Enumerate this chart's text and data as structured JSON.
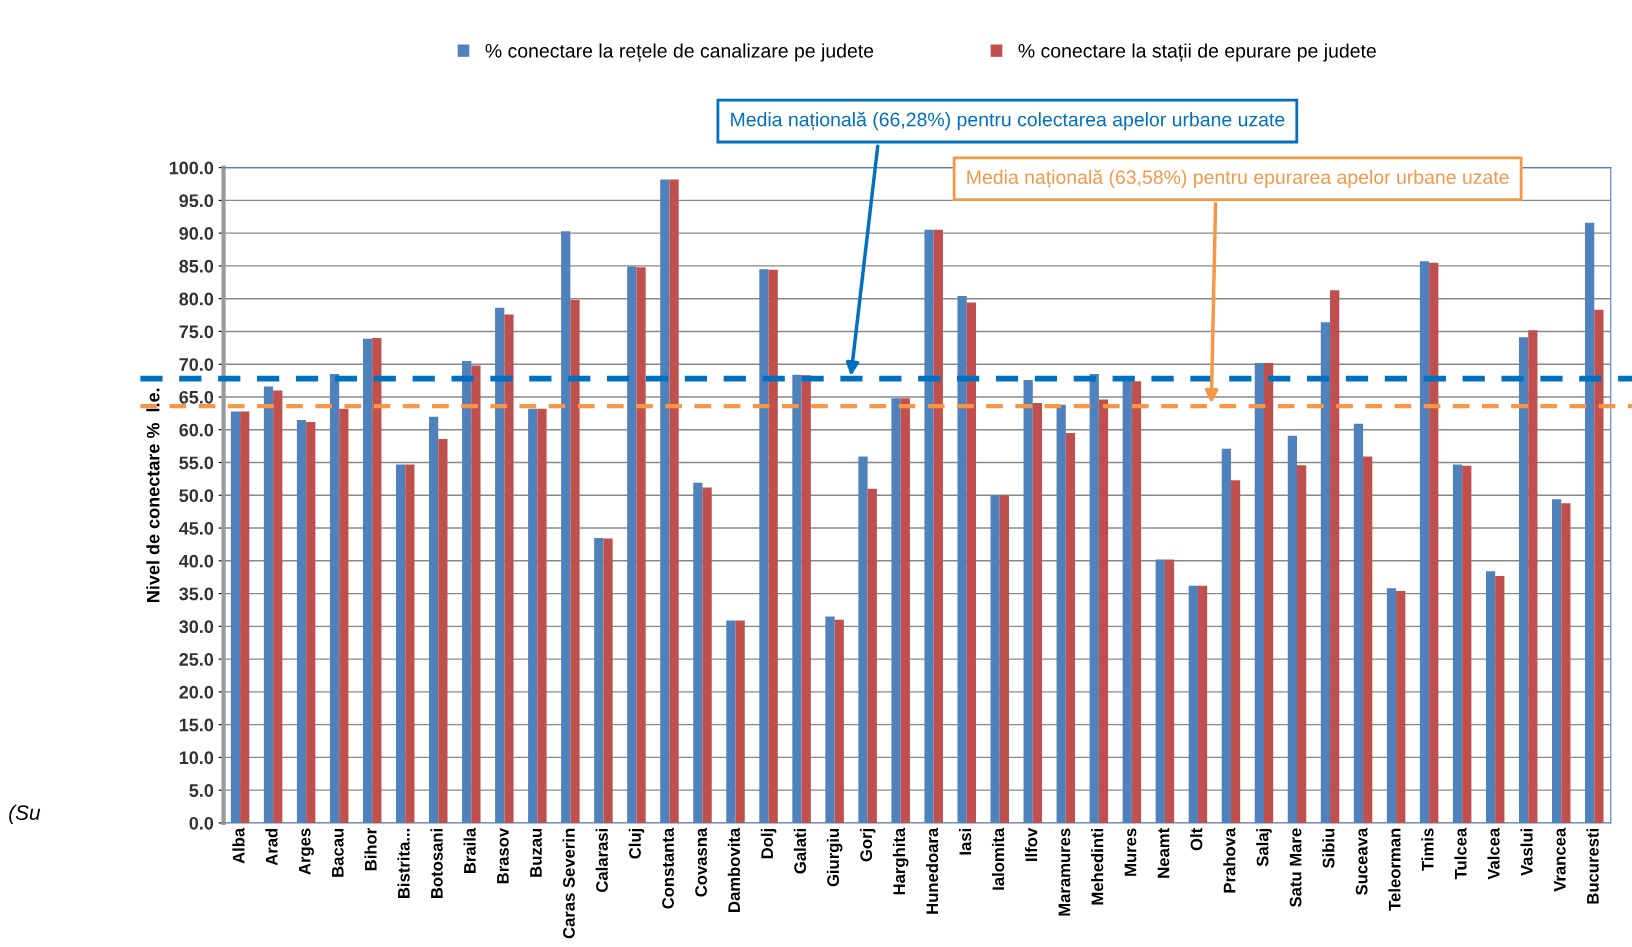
{
  "chart_data": {
    "type": "bar",
    "ylabel": "Nivel de conectare %  l.e.",
    "categories": [
      "Alba",
      "Arad",
      "Arges",
      "Bacau",
      "Bihor",
      "Bistrita...",
      "Botosani",
      "Braila",
      "Brasov",
      "Buzau",
      "Caras Severin",
      "Calarasi",
      "Cluj",
      "Constanta",
      "Covasna",
      "Dambovita",
      "Dolj",
      "Galati",
      "Giurgiu",
      "Gorj",
      "Harghita",
      "Hunedoara",
      "Iasi",
      "Ialomita",
      "Ilfov",
      "Maramures",
      "Mehedinti",
      "Mures",
      "Neamt",
      "Olt",
      "Prahova",
      "Salaj",
      "Satu Mare",
      "Sibiu",
      "Suceava",
      "Teleorman",
      "Timis",
      "Tulcea",
      "Valcea",
      "Vaslui",
      "Vrancea",
      "Bucuresti"
    ],
    "series": [
      {
        "name": "% conectare la rețele de canalizare pe judete",
        "color": "#4f81bd",
        "values": [
          62.8,
          66.6,
          61.5,
          68.5,
          73.9,
          54.7,
          62.0,
          70.5,
          78.6,
          63.2,
          90.3,
          43.5,
          84.9,
          98.2,
          51.9,
          30.9,
          84.5,
          68.4,
          31.5,
          55.9,
          64.8,
          90.5,
          80.4,
          50.0,
          67.6,
          63.8,
          68.5,
          68.1,
          40.2,
          36.2,
          57.1,
          70.2,
          59.1,
          76.4,
          60.9,
          35.8,
          85.7,
          54.7,
          38.4,
          74.1,
          49.4,
          91.6
        ]
      },
      {
        "name": "% conectare la stații de epurare pe judete",
        "color": "#c0504d",
        "values": [
          62.8,
          66.0,
          61.2,
          63.2,
          74.0,
          54.7,
          58.6,
          69.8,
          77.6,
          63.2,
          79.8,
          43.4,
          84.8,
          98.2,
          51.2,
          30.9,
          84.4,
          68.3,
          31.0,
          51.0,
          64.8,
          90.5,
          79.4,
          50.0,
          64.1,
          59.5,
          64.6,
          67.4,
          40.2,
          36.2,
          52.3,
          70.2,
          54.6,
          81.3,
          55.9,
          35.4,
          85.5,
          54.5,
          37.7,
          75.2,
          48.8,
          78.3
        ]
      }
    ],
    "ylim": [
      0,
      100
    ],
    "yticks": [
      {
        "value": 0,
        "label": "0.0"
      },
      {
        "value": 5,
        "label": "5.0"
      },
      {
        "value": 10,
        "label": "10.0"
      },
      {
        "value": 15,
        "label": "15.0"
      },
      {
        "value": 20,
        "label": "20.0"
      },
      {
        "value": 25,
        "label": "25.0"
      },
      {
        "value": 30,
        "label": "30.0"
      },
      {
        "value": 35,
        "label": "35.0"
      },
      {
        "value": 40,
        "label": "40.0"
      },
      {
        "value": 45,
        "label": "45.0"
      },
      {
        "value": 50,
        "label": "50.0"
      },
      {
        "value": 55,
        "label": "55.0"
      },
      {
        "value": 60,
        "label": "60.0"
      },
      {
        "value": 65,
        "label": "65.0"
      },
      {
        "value": 70,
        "label": "70.0"
      },
      {
        "value": 75,
        "label": "75.0"
      },
      {
        "value": 80,
        "label": "80.0"
      },
      {
        "value": 85,
        "label": "85.0"
      },
      {
        "value": 90,
        "label": "90.0"
      },
      {
        "value": 95,
        "label": "95.0"
      },
      {
        "value": 100,
        "label": "100.0"
      }
    ],
    "ref_lines": [
      {
        "axis": "y",
        "value": 67.8,
        "label": "Media națională (66,28%) pentru colectarea apelor urbane uzate",
        "color": "#0070c0",
        "line_style": "dashed"
      },
      {
        "axis": "y",
        "value": 63.6,
        "label": "Media națională (63,58%) pentru epurarea apelor urbane uzate",
        "color": "#f79646",
        "line_style": "dashed"
      }
    ],
    "annotations": [
      "(Su"
    ],
    "grid": "y",
    "legend": "top"
  }
}
